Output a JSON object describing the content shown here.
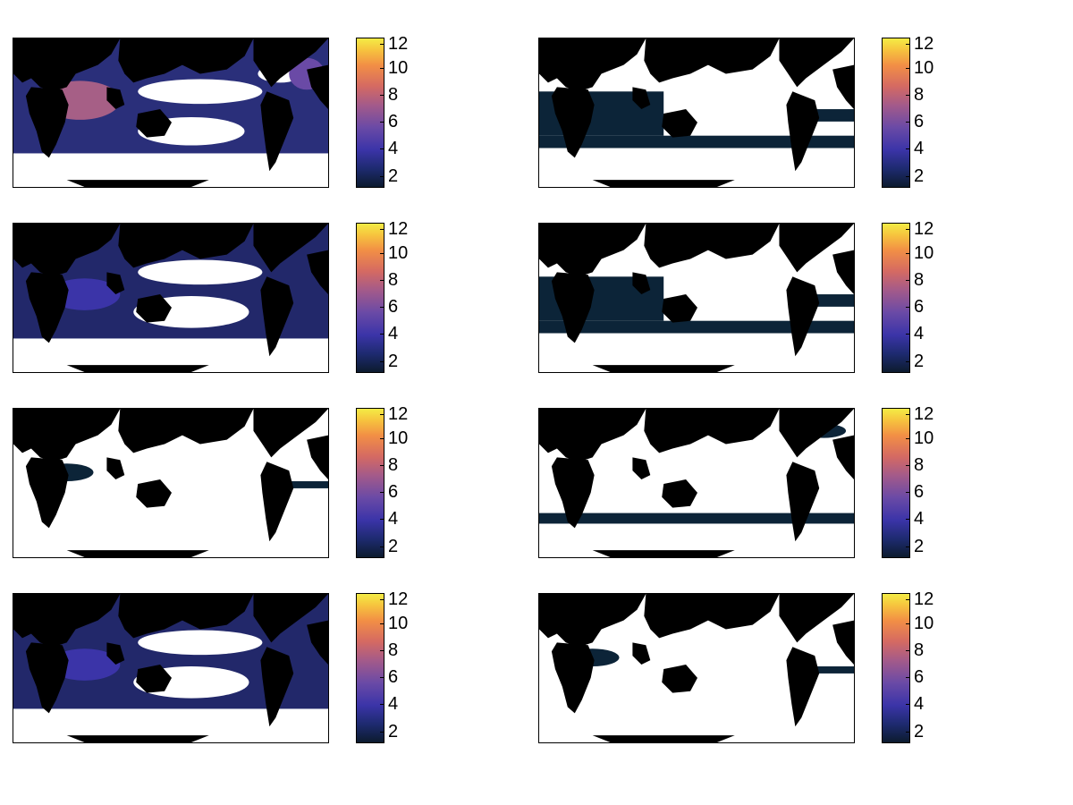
{
  "colorbar": {
    "ticks": [
      "12",
      "10",
      "8",
      "6",
      "4",
      "2"
    ],
    "range": [
      1,
      12
    ],
    "colors": [
      "#0c1b2e",
      "#1d2a6e",
      "#3b34a8",
      "#6a4aa6",
      "#a35a8a",
      "#d56a62",
      "#f28f45",
      "#f6c23e",
      "#f4ec45"
    ]
  },
  "palette": {
    "land": "#000000",
    "ocean_nodata": "#ffffff",
    "low": "#0c2438",
    "mid": "#3b34a8",
    "high": "#c86a78"
  },
  "panels": [
    {
      "name": "map-r1-c1",
      "intensity": "high"
    },
    {
      "name": "map-r1-c2",
      "intensity": "low"
    },
    {
      "name": "map-r2-c1",
      "intensity": "mid"
    },
    {
      "name": "map-r2-c2",
      "intensity": "low"
    },
    {
      "name": "map-r3-c1",
      "intensity": "sparse"
    },
    {
      "name": "map-r3-c2",
      "intensity": "band"
    },
    {
      "name": "map-r4-c1",
      "intensity": "mid"
    },
    {
      "name": "map-r4-c2",
      "intensity": "sparse"
    }
  ]
}
